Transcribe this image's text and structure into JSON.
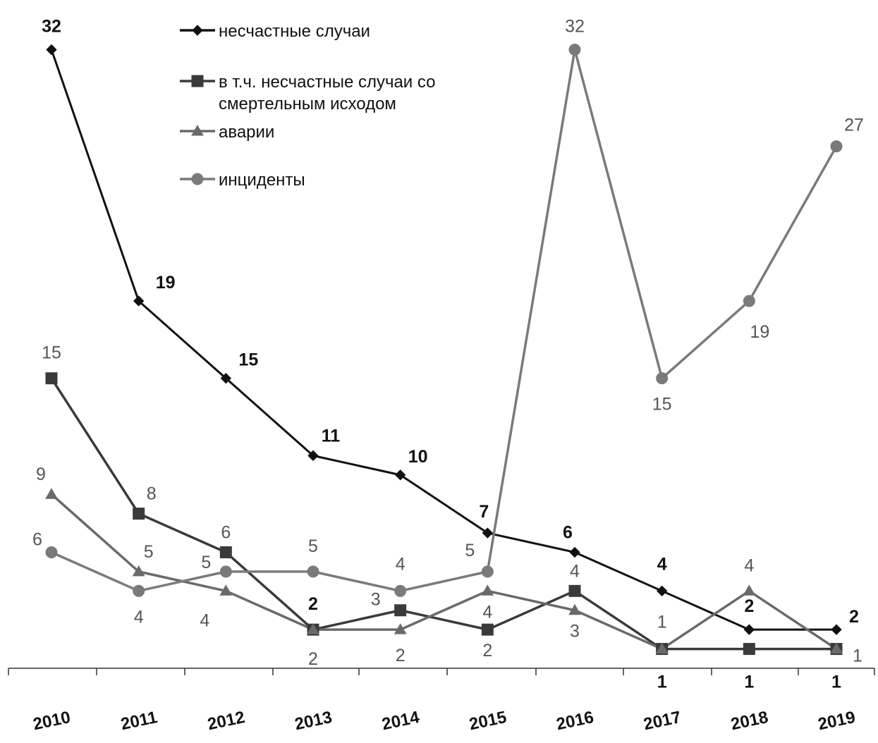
{
  "chart_data": {
    "type": "line",
    "categories": [
      "2010",
      "2011",
      "2012",
      "2013",
      "2014",
      "2015",
      "2016",
      "2017",
      "2018",
      "2019"
    ],
    "ylim": [
      0,
      33
    ],
    "grid": false,
    "legend_position": "top-center",
    "series": [
      {
        "name": "несчастные случаи",
        "marker": "diamond",
        "color": "#111111",
        "values": [
          32,
          19,
          15,
          11,
          10,
          7,
          6,
          4,
          2,
          2
        ]
      },
      {
        "name": "в т.ч. несчастные случаи со смертельным исходом",
        "name_lines": [
          "в т.ч. несчастные случаи со",
          "смертельным исходом"
        ],
        "marker": "square",
        "color": "#3a3a3a",
        "values": [
          15,
          8,
          6,
          2,
          3,
          2,
          4,
          1,
          1,
          1
        ],
        "labels": [
          "15",
          "8",
          "6",
          "2",
          "3",
          "2",
          "4",
          "1",
          "1",
          "1"
        ]
      },
      {
        "name": "аварии",
        "marker": "triangle",
        "color": "#6a6a6a",
        "values": [
          9,
          5,
          4,
          2,
          2,
          4,
          3,
          1,
          4,
          1
        ],
        "labels": [
          "9",
          "5",
          "4",
          "2",
          "2",
          "4",
          "3",
          "1",
          "4",
          "1"
        ]
      },
      {
        "name": "инциденты",
        "marker": "circle",
        "color": "#7a7a7a",
        "values": [
          6,
          4,
          5,
          5,
          4,
          5,
          32,
          15,
          19,
          27
        ],
        "labels": [
          "6",
          "4",
          "5",
          "5",
          "4",
          "5",
          "32",
          "15",
          "19",
          "27"
        ]
      }
    ]
  }
}
